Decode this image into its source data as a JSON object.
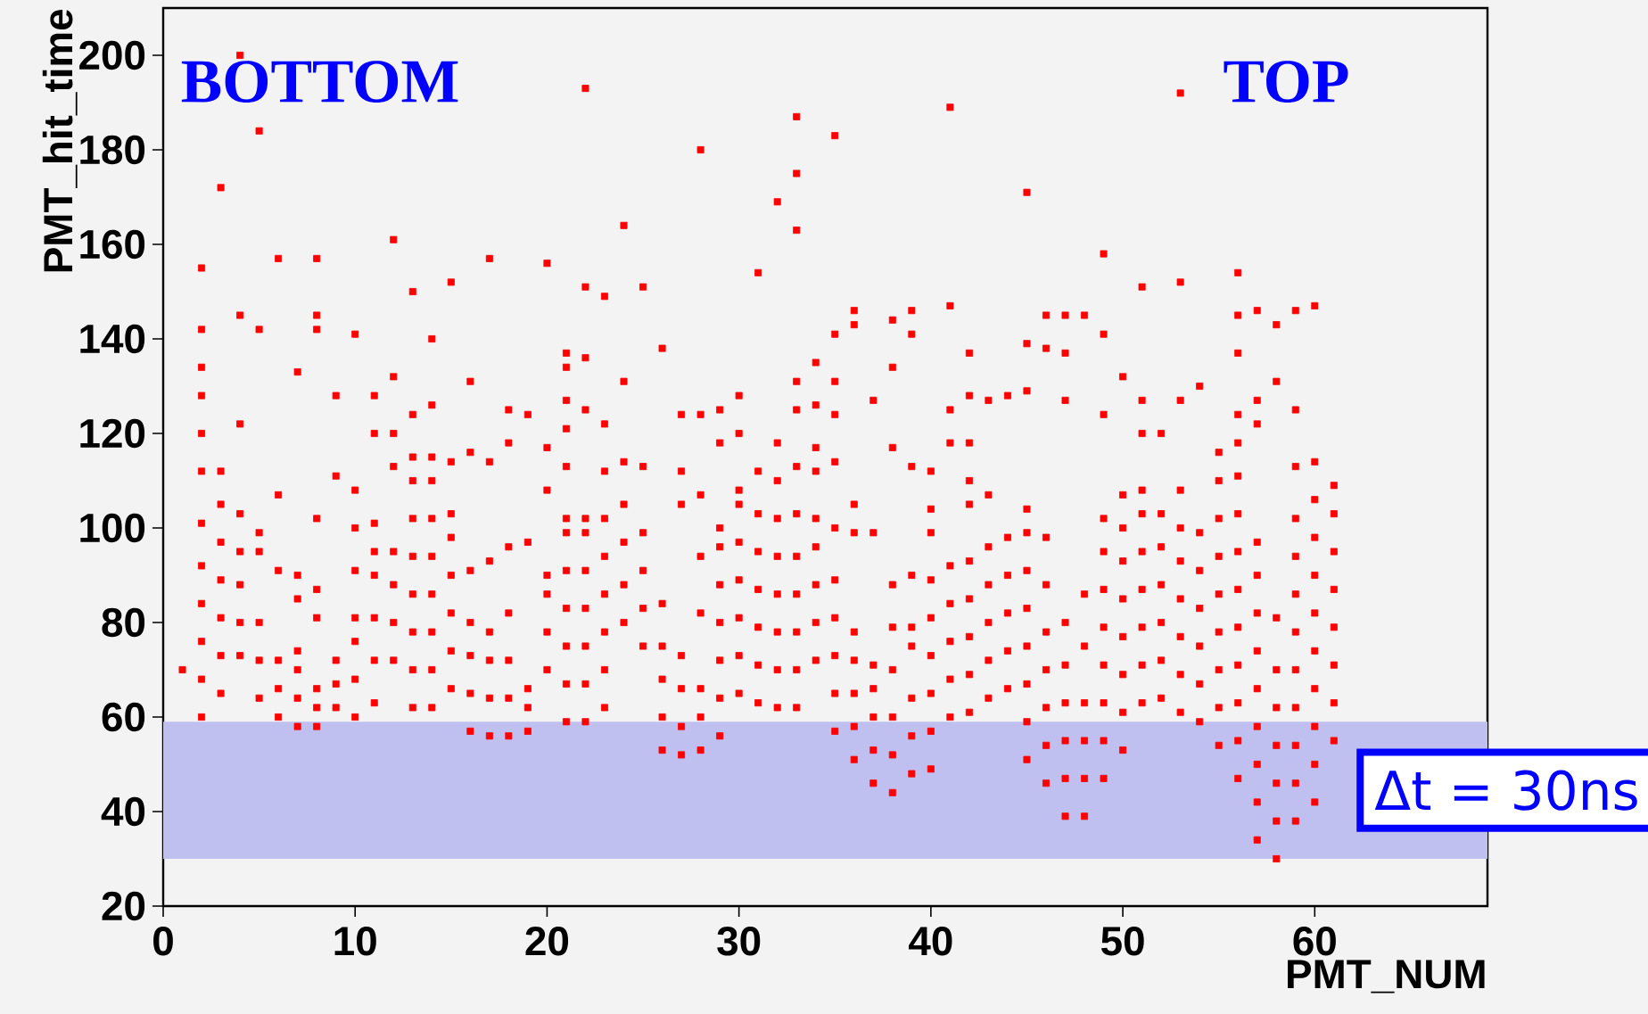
{
  "chart_data": {
    "type": "scatter",
    "xlabel": "PMT_NUM",
    "ylabel": "PMT_hit_time",
    "color": "#ff0000",
    "marker": "square",
    "xlim": [
      0,
      69
    ],
    "ylim": [
      20,
      210
    ],
    "xticks": [
      0,
      10,
      20,
      30,
      40,
      50,
      60
    ],
    "yticks": [
      20,
      40,
      60,
      80,
      100,
      120,
      140,
      160,
      180,
      200
    ],
    "annotations": [
      "BOTTOM",
      "TOP"
    ],
    "bands": [
      {
        "axis": "y",
        "from": 30,
        "to": 59,
        "label": "Δt = 30ns",
        "color": "#c0c0f0"
      }
    ],
    "series": [
      {
        "x": [
          1
        ],
        "values": [
          70
        ]
      },
      {
        "x": [
          2,
          2,
          2,
          2,
          2,
          2,
          2,
          2,
          2,
          2,
          2,
          2
        ],
        "values": [
          60,
          68,
          76,
          84,
          92,
          101,
          112,
          120,
          128,
          134,
          142,
          155
        ]
      },
      {
        "x": [
          3,
          3,
          3,
          3,
          3,
          3,
          3,
          3
        ],
        "values": [
          65,
          73,
          81,
          89,
          97,
          105,
          112,
          172
        ]
      },
      {
        "x": [
          4,
          4,
          4,
          4,
          4,
          4,
          4,
          4
        ],
        "values": [
          73,
          80,
          88,
          95,
          103,
          122,
          145,
          200
        ]
      },
      {
        "x": [
          5,
          5,
          5,
          5,
          5,
          5,
          5
        ],
        "values": [
          64,
          72,
          80,
          95,
          99,
          142,
          184
        ]
      },
      {
        "x": [
          6,
          6,
          6,
          6,
          6,
          6
        ],
        "values": [
          60,
          66,
          72,
          91,
          107,
          157
        ]
      },
      {
        "x": [
          7,
          7,
          7,
          7,
          7,
          7,
          7
        ],
        "values": [
          58,
          64,
          70,
          74,
          85,
          90,
          133
        ]
      },
      {
        "x": [
          8,
          8,
          8,
          8,
          8,
          8,
          8,
          8,
          8
        ],
        "values": [
          58,
          62,
          66,
          81,
          87,
          102,
          142,
          145,
          157
        ]
      },
      {
        "x": [
          9,
          9,
          9,
          9,
          9
        ],
        "values": [
          62,
          67,
          72,
          111,
          128
        ]
      },
      {
        "x": [
          10,
          10,
          10,
          10,
          10,
          10,
          10,
          10
        ],
        "values": [
          60,
          68,
          76,
          81,
          91,
          100,
          108,
          141
        ]
      },
      {
        "x": [
          11,
          11,
          11,
          11,
          11,
          11,
          11,
          11
        ],
        "values": [
          63,
          72,
          81,
          90,
          95,
          101,
          120,
          128
        ]
      },
      {
        "x": [
          12,
          12,
          12,
          12,
          12,
          12,
          12,
          12
        ],
        "values": [
          72,
          80,
          88,
          95,
          113,
          120,
          132,
          161
        ]
      },
      {
        "x": [
          13,
          13,
          13,
          13,
          13,
          13,
          13,
          13,
          13,
          13
        ],
        "values": [
          62,
          70,
          78,
          86,
          94,
          102,
          110,
          115,
          124,
          150
        ]
      },
      {
        "x": [
          14,
          14,
          14,
          14,
          14,
          14,
          14,
          14,
          14,
          14
        ],
        "values": [
          62,
          70,
          78,
          86,
          94,
          102,
          110,
          115,
          126,
          140
        ]
      },
      {
        "x": [
          15,
          15,
          15,
          15,
          15,
          15,
          15,
          15
        ],
        "values": [
          66,
          74,
          82,
          90,
          98,
          103,
          114,
          152
        ]
      },
      {
        "x": [
          16,
          16,
          16,
          16,
          16,
          16,
          16
        ],
        "values": [
          57,
          65,
          73,
          80,
          91,
          116,
          131
        ]
      },
      {
        "x": [
          17,
          17,
          17,
          17,
          17,
          17,
          17
        ],
        "values": [
          56,
          64,
          72,
          78,
          93,
          114,
          157
        ]
      },
      {
        "x": [
          18,
          18,
          18,
          18,
          18,
          18,
          18
        ],
        "values": [
          56,
          64,
          72,
          82,
          96,
          118,
          125
        ]
      },
      {
        "x": [
          19,
          19,
          19,
          19,
          19
        ],
        "values": [
          57,
          62,
          66,
          97,
          124
        ]
      },
      {
        "x": [
          20,
          20,
          20,
          20,
          20,
          20,
          20
        ],
        "values": [
          70,
          78,
          86,
          90,
          108,
          117,
          156
        ]
      },
      {
        "x": [
          21,
          21,
          21,
          21,
          21,
          21,
          21,
          21,
          21,
          21,
          21,
          21
        ],
        "values": [
          59,
          67,
          75,
          83,
          91,
          99,
          102,
          113,
          121,
          127,
          134,
          137
        ]
      },
      {
        "x": [
          22,
          22,
          22,
          22,
          22,
          22,
          22,
          22,
          22,
          22,
          22
        ],
        "values": [
          59,
          67,
          75,
          83,
          91,
          99,
          102,
          125,
          136,
          151,
          193
        ]
      },
      {
        "x": [
          23,
          23,
          23,
          23,
          23,
          23,
          23,
          23,
          23
        ],
        "values": [
          62,
          70,
          78,
          86,
          94,
          102,
          112,
          122,
          149
        ]
      },
      {
        "x": [
          24,
          24,
          24,
          24,
          24,
          24,
          24
        ],
        "values": [
          80,
          88,
          97,
          105,
          114,
          131,
          164
        ]
      },
      {
        "x": [
          25,
          25,
          25,
          25,
          25,
          25
        ],
        "values": [
          75,
          83,
          91,
          99,
          113,
          151
        ]
      },
      {
        "x": [
          26,
          26,
          26,
          26,
          26,
          26
        ],
        "values": [
          53,
          60,
          68,
          75,
          84,
          138
        ]
      },
      {
        "x": [
          27,
          27,
          27,
          27,
          27,
          27,
          27
        ],
        "values": [
          52,
          58,
          66,
          73,
          105,
          112,
          124
        ]
      },
      {
        "x": [
          28,
          28,
          28,
          28,
          28,
          28,
          28,
          28
        ],
        "values": [
          53,
          60,
          66,
          82,
          94,
          107,
          124,
          180
        ]
      },
      {
        "x": [
          29,
          29,
          29,
          29,
          29,
          29,
          29,
          29,
          29
        ],
        "values": [
          56,
          64,
          72,
          80,
          88,
          96,
          100,
          118,
          125
        ]
      },
      {
        "x": [
          30,
          30,
          30,
          30,
          30,
          30,
          30,
          30,
          30
        ],
        "values": [
          65,
          73,
          81,
          89,
          97,
          105,
          108,
          120,
          128
        ]
      },
      {
        "x": [
          31,
          31,
          31,
          31,
          31,
          31,
          31,
          31
        ],
        "values": [
          63,
          71,
          79,
          87,
          95,
          103,
          112,
          154
        ]
      },
      {
        "x": [
          32,
          32,
          32,
          32,
          32,
          32,
          32,
          32,
          32
        ],
        "values": [
          62,
          70,
          78,
          86,
          94,
          102,
          110,
          118,
          169
        ]
      },
      {
        "x": [
          33,
          33,
          33,
          33,
          33,
          33,
          33,
          33,
          33,
          33,
          33,
          33
        ],
        "values": [
          62,
          70,
          78,
          86,
          94,
          103,
          113,
          125,
          131,
          163,
          175,
          187
        ]
      },
      {
        "x": [
          34,
          34,
          34,
          34,
          34,
          34,
          34,
          34,
          34
        ],
        "values": [
          72,
          80,
          88,
          96,
          102,
          112,
          117,
          126,
          135
        ]
      },
      {
        "x": [
          35,
          35,
          35,
          35,
          35,
          35,
          35,
          35,
          35,
          35,
          35
        ],
        "values": [
          57,
          65,
          73,
          81,
          89,
          100,
          114,
          124,
          131,
          141,
          183
        ]
      },
      {
        "x": [
          36,
          36,
          36,
          36,
          36,
          36,
          36,
          36,
          36
        ],
        "values": [
          51,
          58,
          65,
          72,
          78,
          99,
          105,
          143,
          146
        ]
      },
      {
        "x": [
          37,
          37,
          37,
          37,
          37,
          37,
          37
        ],
        "values": [
          46,
          53,
          60,
          66,
          71,
          99,
          127
        ]
      },
      {
        "x": [
          38,
          38,
          38,
          38,
          38,
          38,
          38,
          38,
          38
        ],
        "values": [
          44,
          52,
          60,
          70,
          79,
          88,
          117,
          134,
          144
        ]
      },
      {
        "x": [
          39,
          39,
          39,
          39,
          39,
          39,
          39,
          39,
          39
        ],
        "values": [
          48,
          56,
          64,
          75,
          79,
          90,
          113,
          141,
          146
        ]
      },
      {
        "x": [
          40,
          40,
          40,
          40,
          40,
          40,
          40,
          40,
          40
        ],
        "values": [
          49,
          57,
          65,
          73,
          81,
          89,
          99,
          104,
          112
        ]
      },
      {
        "x": [
          41,
          41,
          41,
          41,
          41,
          41,
          41,
          41,
          41
        ],
        "values": [
          60,
          68,
          76,
          84,
          92,
          118,
          125,
          147,
          189
        ]
      },
      {
        "x": [
          42,
          42,
          42,
          42,
          42,
          42,
          42,
          42,
          42,
          42
        ],
        "values": [
          61,
          69,
          77,
          85,
          93,
          105,
          110,
          118,
          128,
          137
        ]
      },
      {
        "x": [
          43,
          43,
          43,
          43,
          43,
          43,
          43
        ],
        "values": [
          64,
          72,
          80,
          88,
          96,
          107,
          127
        ]
      },
      {
        "x": [
          44,
          44,
          44,
          44,
          44,
          44
        ],
        "values": [
          66,
          74,
          82,
          90,
          98,
          128
        ]
      },
      {
        "x": [
          45,
          45,
          45,
          45,
          45,
          45,
          45,
          45,
          45,
          45,
          45
        ],
        "values": [
          51,
          59,
          67,
          75,
          83,
          91,
          99,
          104,
          129,
          139,
          171
        ]
      },
      {
        "x": [
          46,
          46,
          46,
          46,
          46,
          46,
          46,
          46,
          46
        ],
        "values": [
          46,
          54,
          62,
          70,
          78,
          88,
          98,
          138,
          145
        ]
      },
      {
        "x": [
          47,
          47,
          47,
          47,
          47,
          47,
          47,
          47,
          47
        ],
        "values": [
          39,
          47,
          55,
          63,
          71,
          80,
          127,
          137,
          145
        ]
      },
      {
        "x": [
          48,
          48,
          48,
          48,
          48,
          48,
          48
        ],
        "values": [
          39,
          47,
          55,
          63,
          75,
          86,
          145
        ]
      },
      {
        "x": [
          49,
          49,
          49,
          49,
          49,
          49,
          49,
          49,
          49,
          49,
          49
        ],
        "values": [
          47,
          55,
          63,
          71,
          79,
          87,
          95,
          102,
          124,
          141,
          158
        ]
      },
      {
        "x": [
          50,
          50,
          50,
          50,
          50,
          50,
          50,
          50,
          50
        ],
        "values": [
          53,
          61,
          69,
          77,
          85,
          93,
          100,
          107,
          132
        ]
      },
      {
        "x": [
          51,
          51,
          51,
          51,
          51,
          51,
          51,
          51,
          51,
          51
        ],
        "values": [
          63,
          71,
          79,
          87,
          95,
          103,
          108,
          120,
          127,
          151
        ]
      },
      {
        "x": [
          52,
          52,
          52,
          52,
          52,
          52,
          52
        ],
        "values": [
          64,
          72,
          80,
          88,
          96,
          103,
          120
        ]
      },
      {
        "x": [
          53,
          53,
          53,
          53,
          53,
          53,
          53,
          53,
          53,
          53
        ],
        "values": [
          61,
          69,
          77,
          85,
          93,
          100,
          108,
          127,
          152,
          192
        ]
      },
      {
        "x": [
          54,
          54,
          54,
          54,
          54,
          54,
          54
        ],
        "values": [
          59,
          67,
          75,
          83,
          91,
          99,
          130
        ]
      },
      {
        "x": [
          55,
          55,
          55,
          55,
          55,
          55,
          55,
          55,
          55
        ],
        "values": [
          54,
          62,
          70,
          78,
          86,
          94,
          102,
          110,
          116
        ]
      },
      {
        "x": [
          56,
          56,
          56,
          56,
          56,
          56,
          56,
          56,
          56,
          56,
          56,
          56,
          56,
          56
        ],
        "values": [
          47,
          55,
          63,
          71,
          79,
          87,
          95,
          103,
          111,
          118,
          124,
          137,
          145,
          154
        ]
      },
      {
        "x": [
          57,
          57,
          57,
          57,
          57,
          57,
          57,
          57,
          57,
          57,
          57,
          57
        ],
        "values": [
          34,
          42,
          50,
          58,
          66,
          74,
          82,
          90,
          97,
          122,
          127,
          146
        ]
      },
      {
        "x": [
          58,
          58,
          58,
          58,
          58,
          58,
          58,
          58,
          58
        ],
        "values": [
          30,
          38,
          46,
          54,
          62,
          70,
          81,
          131,
          143
        ]
      },
      {
        "x": [
          59,
          59,
          59,
          59,
          59,
          59,
          59,
          59,
          59,
          59,
          59,
          59
        ],
        "values": [
          38,
          46,
          54,
          62,
          70,
          78,
          86,
          94,
          102,
          113,
          125,
          146
        ]
      },
      {
        "x": [
          60,
          60,
          60,
          60,
          60,
          60,
          60,
          60,
          60,
          60,
          60
        ],
        "values": [
          42,
          50,
          58,
          66,
          74,
          82,
          90,
          98,
          106,
          114,
          147
        ]
      },
      {
        "x": [
          61,
          61,
          61,
          61,
          61,
          61,
          61,
          61
        ],
        "values": [
          55,
          63,
          71,
          79,
          87,
          95,
          103,
          109
        ]
      }
    ]
  }
}
